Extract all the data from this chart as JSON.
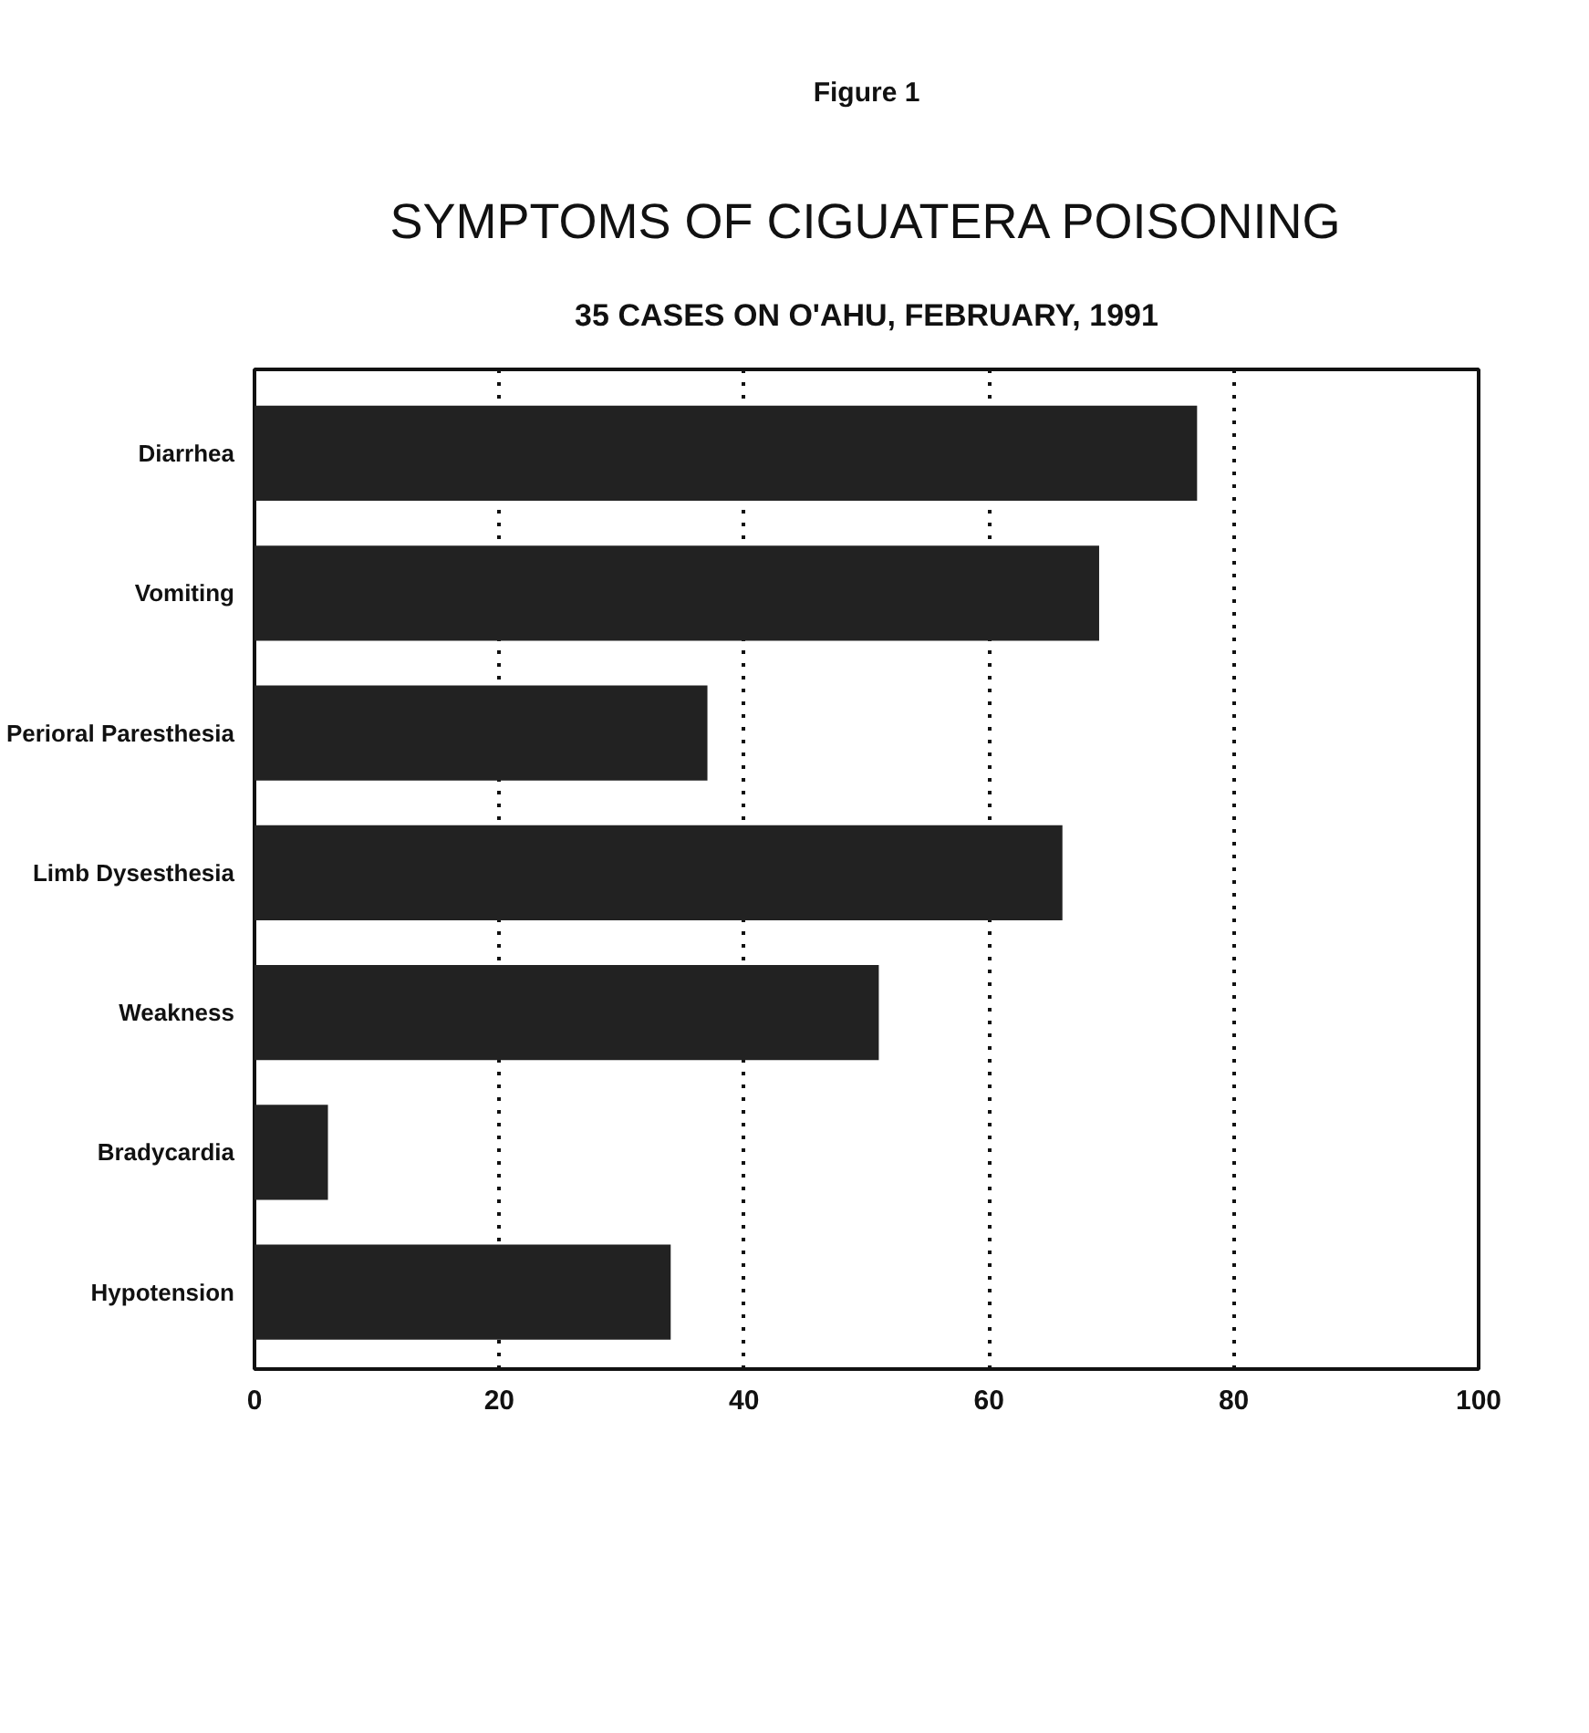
{
  "chart_data": {
    "type": "bar",
    "orientation": "horizontal",
    "title": "SYMPTOMS OF CIGUATERA POISONING",
    "subtitle": "35 CASES ON O'AHU, FEBRUARY, 1991",
    "annotations": [
      "Figure 1"
    ],
    "categories": [
      "Diarrhea",
      "Vomiting",
      "Perioral Paresthesia",
      "Limb Dysesthesia",
      "Weakness",
      "Bradycardia",
      "Hypotension"
    ],
    "values": [
      77,
      69,
      37,
      66,
      51,
      6,
      34
    ],
    "color": "#222222",
    "xlim": [
      0,
      100
    ],
    "xticks": [
      0,
      20,
      40,
      60,
      80,
      100
    ],
    "grid": "x"
  }
}
